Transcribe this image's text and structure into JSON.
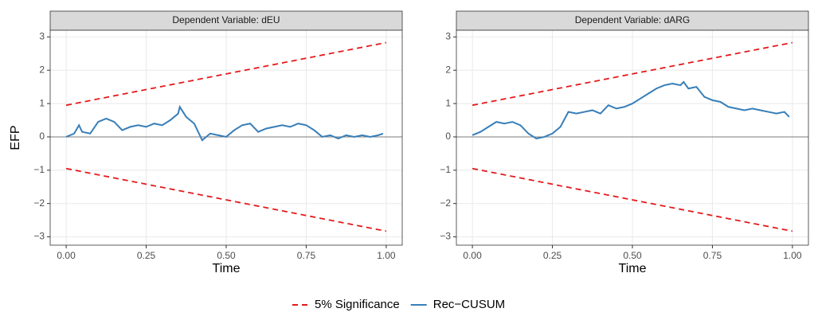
{
  "chart_data": [
    {
      "type": "line",
      "title": "Dependent Variable: dEU",
      "xlabel": "Time",
      "ylabel": "EFP",
      "xlim": [
        -0.05,
        1.05
      ],
      "ylim": [
        -3.25,
        3.2
      ],
      "xticks": [
        {
          "value": 0,
          "label": "0.00"
        },
        {
          "value": 0.25,
          "label": "0.25"
        },
        {
          "value": 0.5,
          "label": "0.50"
        },
        {
          "value": 0.75,
          "label": "0.75"
        },
        {
          "value": 1,
          "label": "1.00"
        }
      ],
      "yticks": [
        {
          "value": -3,
          "label": "−3"
        },
        {
          "value": -2,
          "label": "−2"
        },
        {
          "value": -1,
          "label": "−1"
        },
        0,
        1,
        2,
        3
      ],
      "hline": 0,
      "grid": true,
      "series": [
        {
          "name": "5% Significance",
          "color": "#e41a1c",
          "dashed": true,
          "x": [
            0,
            1
          ],
          "values": [
            0.95,
            2.83
          ],
          "lower": [
            -0.95,
            -2.83
          ]
        },
        {
          "name": "Rec−CUSUM",
          "color": "#377eb8",
          "x": [
            0,
            0.025,
            0.04,
            0.05,
            0.075,
            0.1,
            0.125,
            0.15,
            0.175,
            0.2,
            0.225,
            0.25,
            0.275,
            0.3,
            0.325,
            0.35,
            0.355,
            0.375,
            0.4,
            0.425,
            0.45,
            0.475,
            0.5,
            0.525,
            0.55,
            0.575,
            0.6,
            0.625,
            0.65,
            0.675,
            0.7,
            0.725,
            0.75,
            0.775,
            0.8,
            0.825,
            0.85,
            0.875,
            0.9,
            0.925,
            0.95,
            0.975,
            0.99
          ],
          "values": [
            0,
            0.1,
            0.35,
            0.15,
            0.1,
            0.45,
            0.55,
            0.45,
            0.2,
            0.3,
            0.35,
            0.3,
            0.4,
            0.35,
            0.5,
            0.7,
            0.9,
            0.6,
            0.4,
            -0.1,
            0.1,
            0.05,
            0,
            0.2,
            0.35,
            0.4,
            0.15,
            0.25,
            0.3,
            0.35,
            0.3,
            0.4,
            0.35,
            0.2,
            0,
            0.05,
            -0.05,
            0.05,
            0,
            0.05,
            0,
            0.05,
            0.1
          ]
        }
      ]
    },
    {
      "type": "line",
      "title": "Dependent Variable: dARG",
      "xlabel": "Time",
      "xlim": [
        -0.05,
        1.05
      ],
      "ylim": [
        -3.25,
        3.2
      ],
      "xticks": [
        {
          "value": 0,
          "label": "0.00"
        },
        {
          "value": 0.25,
          "label": "0.25"
        },
        {
          "value": 0.5,
          "label": "0.50"
        },
        {
          "value": 0.75,
          "label": "0.75"
        },
        {
          "value": 1,
          "label": "1.00"
        }
      ],
      "yticks": [
        {
          "value": -3,
          "label": "−3"
        },
        {
          "value": -2,
          "label": "−2"
        },
        {
          "value": -1,
          "label": "−1"
        },
        0,
        1,
        2,
        3
      ],
      "hline": 0,
      "grid": true,
      "series": [
        {
          "name": "5% Significance",
          "color": "#e41a1c",
          "dashed": true,
          "x": [
            0,
            1
          ],
          "values": [
            0.95,
            2.83
          ],
          "lower": [
            -0.95,
            -2.83
          ]
        },
        {
          "name": "Rec−CUSUM",
          "color": "#377eb8",
          "x": [
            0,
            0.025,
            0.05,
            0.075,
            0.1,
            0.125,
            0.15,
            0.175,
            0.2,
            0.225,
            0.25,
            0.275,
            0.3,
            0.325,
            0.35,
            0.375,
            0.4,
            0.425,
            0.45,
            0.475,
            0.5,
            0.525,
            0.55,
            0.575,
            0.6,
            0.625,
            0.65,
            0.66,
            0.675,
            0.7,
            0.725,
            0.75,
            0.775,
            0.8,
            0.825,
            0.85,
            0.875,
            0.9,
            0.925,
            0.95,
            0.975,
            0.99
          ],
          "values": [
            0.05,
            0.15,
            0.3,
            0.45,
            0.4,
            0.45,
            0.35,
            0.1,
            -0.05,
            0,
            0.1,
            0.3,
            0.75,
            0.7,
            0.75,
            0.8,
            0.7,
            0.95,
            0.85,
            0.9,
            1,
            1.15,
            1.3,
            1.45,
            1.55,
            1.6,
            1.55,
            1.65,
            1.45,
            1.5,
            1.2,
            1.1,
            1.05,
            0.9,
            0.85,
            0.8,
            0.85,
            0.8,
            0.75,
            0.7,
            0.75,
            0.6
          ]
        }
      ]
    }
  ]
}
